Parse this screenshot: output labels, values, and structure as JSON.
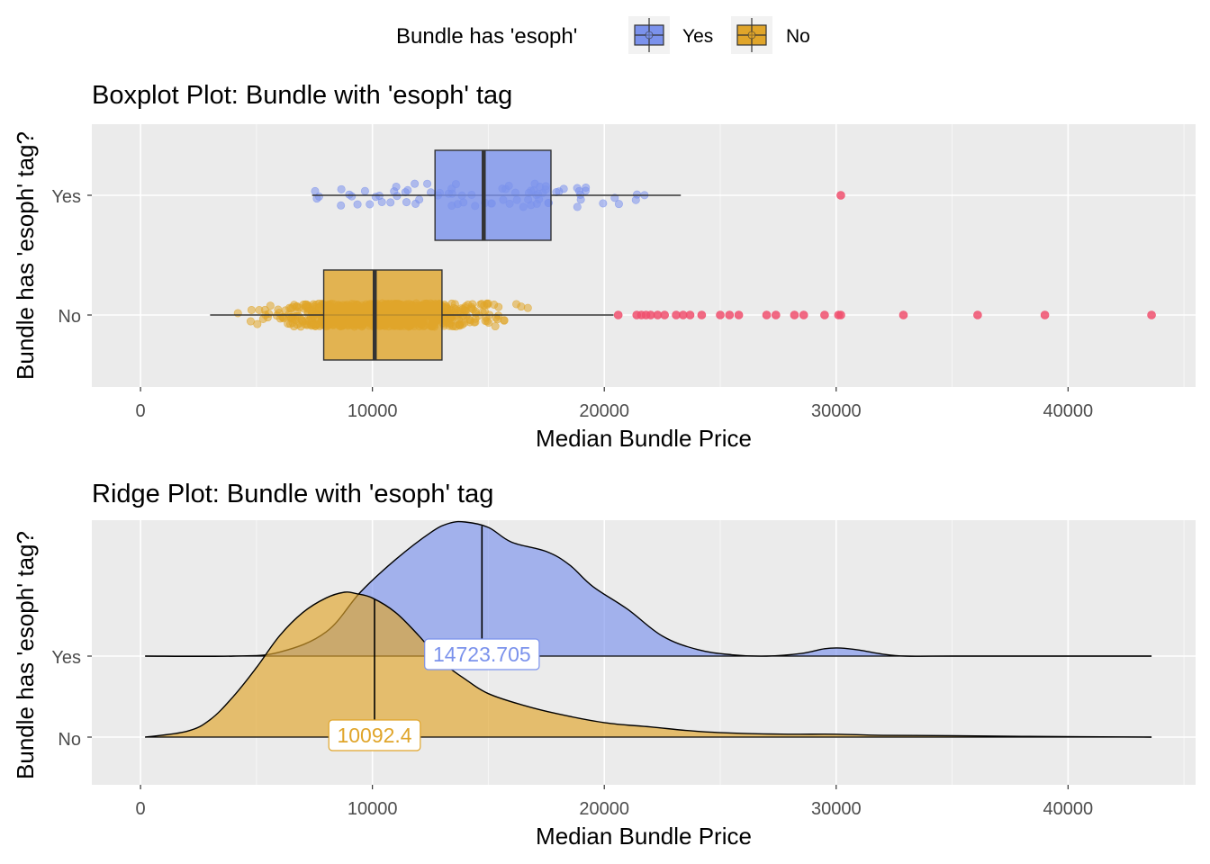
{
  "legend": {
    "title": "Bundle has 'esoph'",
    "items": [
      {
        "label": "Yes",
        "color": "#7b92ec"
      },
      {
        "label": "No",
        "color": "#e0a52a"
      }
    ]
  },
  "chart_data": [
    {
      "type": "boxplot",
      "title": "Boxplot Plot: Bundle with 'esoph' tag",
      "xlabel": "Median Bundle Price",
      "ylabel": "Bundle has 'esoph' tag?",
      "xlim": [
        -2100,
        45500
      ],
      "xticks": [
        0,
        10000,
        20000,
        30000,
        40000
      ],
      "xtick_labels": [
        "0",
        "10000",
        "20000",
        "30000",
        "40000"
      ],
      "categories": [
        "Yes",
        "No"
      ],
      "outlier_color": "#f0506e",
      "series": [
        {
          "category": "Yes",
          "color": "#7b92ec",
          "whisker_low": 7400,
          "q1": 12700,
          "median": 14800,
          "q3": 17700,
          "whisker_high": 23300,
          "outliers": [
            30200
          ],
          "jitter_range": [
            7400,
            21800
          ]
        },
        {
          "category": "No",
          "color": "#e0a52a",
          "whisker_low": 3000,
          "q1": 7900,
          "median": 10100,
          "q3": 13000,
          "whisker_high": 20400,
          "outliers": [
            20600,
            21400,
            21600,
            21800,
            22000,
            22300,
            22600,
            23100,
            23400,
            23700,
            24200,
            25000,
            25400,
            25800,
            27000,
            27400,
            28200,
            28600,
            29500,
            30100,
            30200,
            32900,
            36100,
            39000,
            43600
          ],
          "jitter_range": [
            3000,
            17800
          ]
        }
      ]
    },
    {
      "type": "density",
      "title": "Ridge Plot: Bundle with 'esoph' tag",
      "xlabel": "Median Bundle Price",
      "ylabel": "Bundle has 'esoph' tag?",
      "xlim": [
        -2100,
        45500
      ],
      "xticks": [
        0,
        10000,
        20000,
        30000,
        40000
      ],
      "xtick_labels": [
        "0",
        "10000",
        "20000",
        "30000",
        "40000"
      ],
      "categories": [
        "Yes",
        "No"
      ],
      "series": [
        {
          "category": "Yes",
          "color": "#7b92ec",
          "median": 14723.705,
          "median_label": "14723.705",
          "x": [
            200,
            4000,
            6000,
            8000,
            9500,
            11000,
            12500,
            13300,
            14000,
            15000,
            16000,
            17500,
            18500,
            19500,
            21000,
            22500,
            24000,
            25500,
            27000,
            28500,
            29500,
            30200,
            31000,
            32000,
            33000,
            35000,
            38000,
            43600
          ],
          "y": [
            0.0,
            0.0,
            0.03,
            0.18,
            0.48,
            0.72,
            0.92,
            0.99,
            1.0,
            0.96,
            0.85,
            0.78,
            0.68,
            0.52,
            0.35,
            0.15,
            0.05,
            0.01,
            0.0,
            0.02,
            0.055,
            0.06,
            0.045,
            0.015,
            0.0,
            0.0,
            0.0,
            0.0
          ]
        },
        {
          "category": "No",
          "color": "#e0a52a",
          "median": 10092.4,
          "median_label": "10092.4",
          "x": [
            200,
            2000,
            3000,
            4000,
            5000,
            6000,
            7000,
            8000,
            8800,
            9300,
            10000,
            11000,
            12000,
            13000,
            14000,
            15000,
            16500,
            18000,
            20000,
            22000,
            24000,
            26000,
            28000,
            30000,
            32000,
            35000,
            38000,
            43600
          ],
          "y": [
            0.0,
            0.04,
            0.12,
            0.28,
            0.48,
            0.7,
            0.86,
            0.96,
            1.0,
            0.99,
            0.96,
            0.86,
            0.7,
            0.52,
            0.4,
            0.3,
            0.22,
            0.16,
            0.1,
            0.07,
            0.04,
            0.025,
            0.02,
            0.02,
            0.012,
            0.01,
            0.005,
            0.0
          ]
        }
      ]
    }
  ]
}
